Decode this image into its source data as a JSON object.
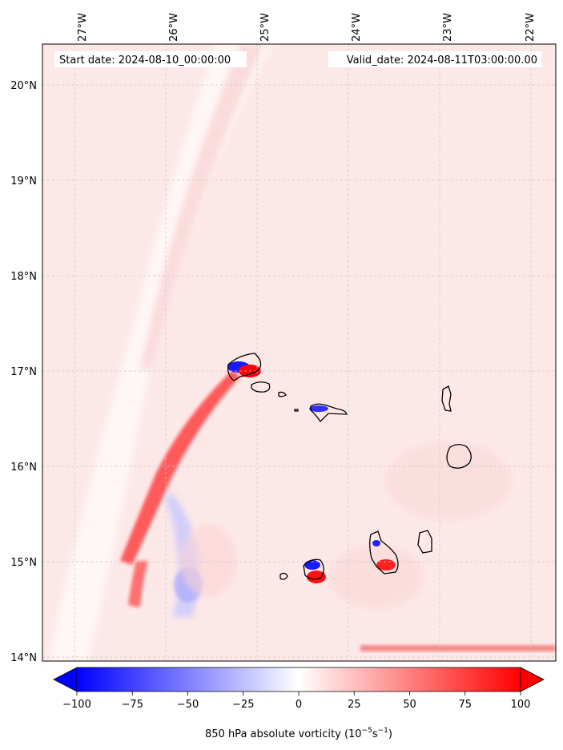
{
  "map": {
    "start_label": "Start date: 2024-08-10_00:00:00",
    "valid_label": "Valid_date: 2024-08-11T03:00:00.00",
    "lon_labels": [
      "27°W",
      "26°W",
      "25°W",
      "24°W",
      "23°W",
      "22°W"
    ],
    "lat_labels": [
      "20°N",
      "19°N",
      "18°N",
      "17°N",
      "16°N",
      "15°N",
      "14°N"
    ],
    "lon_values": [
      -27,
      -26,
      -25,
      -24,
      -23,
      -22
    ],
    "lat_values": [
      20,
      19,
      18,
      17,
      16,
      15,
      14
    ],
    "gridlines": true,
    "colormap": "bwr"
  },
  "colorbar": {
    "ticks": [
      "−100",
      "−75",
      "−50",
      "−25",
      "0",
      "25",
      "50",
      "75",
      "100"
    ],
    "tick_values": [
      -100,
      -75,
      -50,
      -25,
      0,
      25,
      50,
      75,
      100
    ],
    "range": [
      -100,
      100
    ],
    "extend": "both",
    "label_main": "850 hPa absolute vorticity (10",
    "label_exp1": "−5",
    "label_mid": "s",
    "label_exp2": "−1",
    "label_end": ")",
    "color_neg": "#0000ff",
    "color_zero": "#ffffff",
    "color_pos": "#ff0000"
  }
}
